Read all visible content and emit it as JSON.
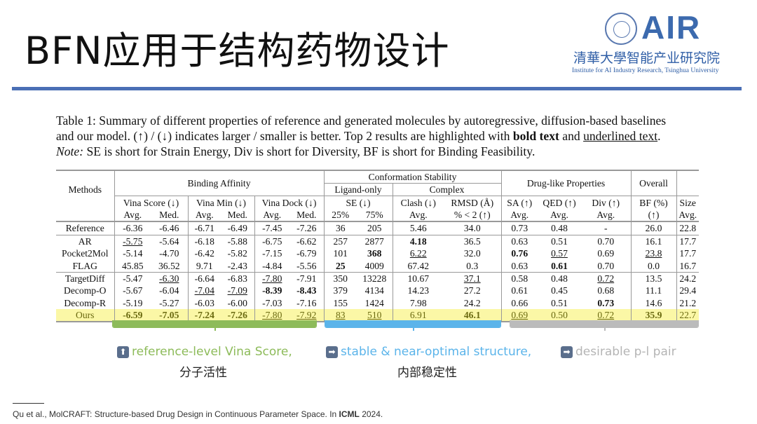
{
  "header": {
    "title": "BFN应用于结构药物设计",
    "logo_text": "AIR",
    "logo_cn": "清華大學智能产业研究院",
    "logo_en": "Institute for AI Industry Research, Tsinghua University",
    "rule_color": "#4a6fb5"
  },
  "caption": {
    "line1": "Table 1: Summary of different properties of reference and generated molecules by autoregressive, diffusion-based baselines",
    "line2a": "and our model. (↑) / (↓) indicates larger / smaller is better. Top 2 results are highlighted with ",
    "line2_bold": "bold text",
    "line2b": " and ",
    "line2_underline": "underlined text",
    "line2c": ".",
    "note_label": "Note:",
    "note_text": " SE is short for Strain Energy, Div is short for Diversity, BF is short for Binding Feasibility."
  },
  "table": {
    "methods_header": "Methods",
    "groups": {
      "binding": "Binding Affinity",
      "conformation": "Conformation Stability",
      "ligand_only": "Ligand-only",
      "complex": "Complex",
      "druglike": "Drug-like Properties",
      "overall": "Overall"
    },
    "metrics": {
      "vina_score": "Vina Score (↓)",
      "vina_min": "Vina Min (↓)",
      "vina_dock": "Vina Dock (↓)",
      "se": "SE (↓)",
      "clash": "Clash (↓)",
      "rmsd": "RMSD (Å)",
      "sa": "SA (↑)",
      "qed": "QED (↑)",
      "div": "Div (↑)",
      "bf": "BF (%)",
      "size": "Size"
    },
    "subheaders": [
      "Avg.",
      "Med.",
      "Avg.",
      "Med.",
      "Avg.",
      "Med.",
      "25%",
      "75%",
      "Avg.",
      "% < 2 (↑)",
      "Avg.",
      "Avg.",
      "Avg.",
      "(↑)",
      "Avg."
    ],
    "rows": [
      {
        "method": "Reference",
        "values": [
          "-6.36",
          "-6.46",
          "-6.71",
          "-6.49",
          "-7.45",
          "-7.26",
          "36",
          "205",
          "5.46",
          "34.0",
          "0.73",
          "0.48",
          "-",
          "26.0",
          "22.8"
        ],
        "bold": [],
        "underline": []
      },
      {
        "method": "AR",
        "values": [
          "-5.75",
          "-5.64",
          "-6.18",
          "-5.88",
          "-6.75",
          "-6.62",
          "257",
          "2877",
          "4.18",
          "36.5",
          "0.63",
          "0.51",
          "0.70",
          "16.1",
          "17.7"
        ],
        "bold": [
          8
        ],
        "underline": [
          0
        ]
      },
      {
        "method": "Pocket2Mol",
        "values": [
          "-5.14",
          "-4.70",
          "-6.42",
          "-5.82",
          "-7.15",
          "-6.79",
          "101",
          "368",
          "6.22",
          "32.0",
          "0.76",
          "0.57",
          "0.69",
          "23.8",
          "17.7"
        ],
        "bold": [
          7,
          10
        ],
        "underline": [
          8,
          11,
          13
        ]
      },
      {
        "method": "FLAG",
        "values": [
          "45.85",
          "36.52",
          "9.71",
          "-2.43",
          "-4.84",
          "-5.56",
          "25",
          "4009",
          "67.42",
          "0.3",
          "0.63",
          "0.61",
          "0.70",
          "0.0",
          "16.7"
        ],
        "bold": [
          6,
          11
        ],
        "underline": []
      },
      {
        "method": "TargetDiff",
        "values": [
          "-5.47",
          "-6.30",
          "-6.64",
          "-6.83",
          "-7.80",
          "-7.91",
          "350",
          "13228",
          "10.67",
          "37.1",
          "0.58",
          "0.48",
          "0.72",
          "13.5",
          "24.2"
        ],
        "bold": [],
        "underline": [
          1,
          4,
          9,
          12
        ]
      },
      {
        "method": "Decomp-O",
        "values": [
          "-5.67",
          "-6.04",
          "-7.04",
          "-7.09",
          "-8.39",
          "-8.43",
          "379",
          "4134",
          "14.23",
          "27.2",
          "0.61",
          "0.45",
          "0.68",
          "11.1",
          "29.4"
        ],
        "bold": [
          4,
          5
        ],
        "underline": [
          2,
          3
        ]
      },
      {
        "method": "Decomp-R",
        "values": [
          "-5.19",
          "-5.27",
          "-6.03",
          "-6.00",
          "-7.03",
          "-7.16",
          "155",
          "1424",
          "7.98",
          "24.2",
          "0.66",
          "0.51",
          "0.73",
          "14.6",
          "21.2"
        ],
        "bold": [
          12
        ],
        "underline": []
      },
      {
        "method": "Ours",
        "values": [
          "-6.59",
          "-7.05",
          "-7.24",
          "-7.26",
          "-7.80",
          "-7.92",
          "83",
          "510",
          "6.91",
          "46.1",
          "0.69",
          "0.50",
          "0.72",
          "35.9",
          "22.7"
        ],
        "bold": [
          0,
          1,
          2,
          3,
          9,
          13
        ],
        "underline": [
          4,
          5,
          6,
          7,
          10,
          12
        ]
      }
    ],
    "highlight_color": "#fbf7a6"
  },
  "annotations": [
    {
      "icon": "arrow-up-icon",
      "text": "reference-level Vina Score,",
      "sub": "分子活性",
      "color": "#8dbb5a"
    },
    {
      "icon": "arrow-right-icon",
      "text": "stable & near-optimal structure,",
      "sub": "内部稳定性",
      "color": "#5bb4ea"
    },
    {
      "icon": "arrow-right-icon",
      "text": "desirable p-l pair",
      "sub": "",
      "color": "#b5b5b5"
    }
  ],
  "footnote": {
    "text": "Qu  et al., MolCRAFT: Structure-based Drug Design in Continuous Parameter Space. In ",
    "venue": "ICML",
    "year": " 2024."
  }
}
